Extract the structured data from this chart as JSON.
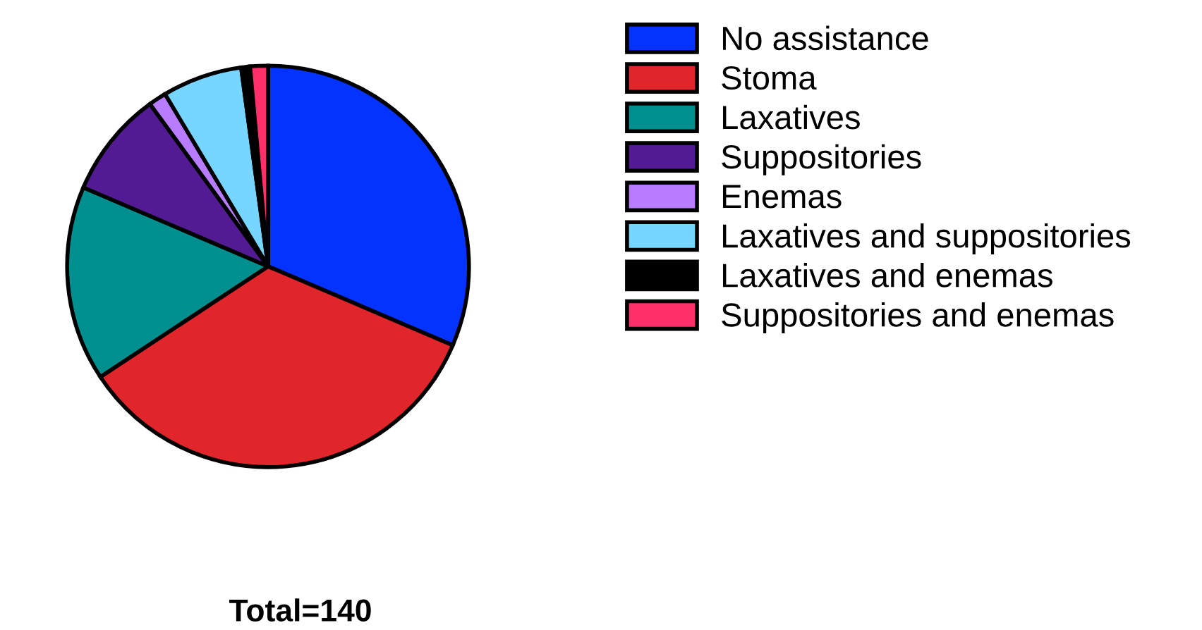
{
  "chart_data": {
    "type": "pie",
    "categories": [
      "No assistance",
      "Stoma",
      "Laxatives",
      "Suppositories",
      "Enemas",
      "Laxatives and suppositories",
      "Laxatives and enemas",
      "Suppositories and enemas"
    ],
    "values": [
      31.43,
      34.29,
      15.71,
      8.57,
      1.43,
      6.43,
      0.71,
      1.43
    ],
    "colors": [
      "#0433ff",
      "#e0252b",
      "#008f8f",
      "#531b93",
      "#b77cff",
      "#76d6ff",
      "#000000",
      "#ff2f6a"
    ],
    "legend": "right",
    "annotations": [
      "Total=140"
    ]
  }
}
